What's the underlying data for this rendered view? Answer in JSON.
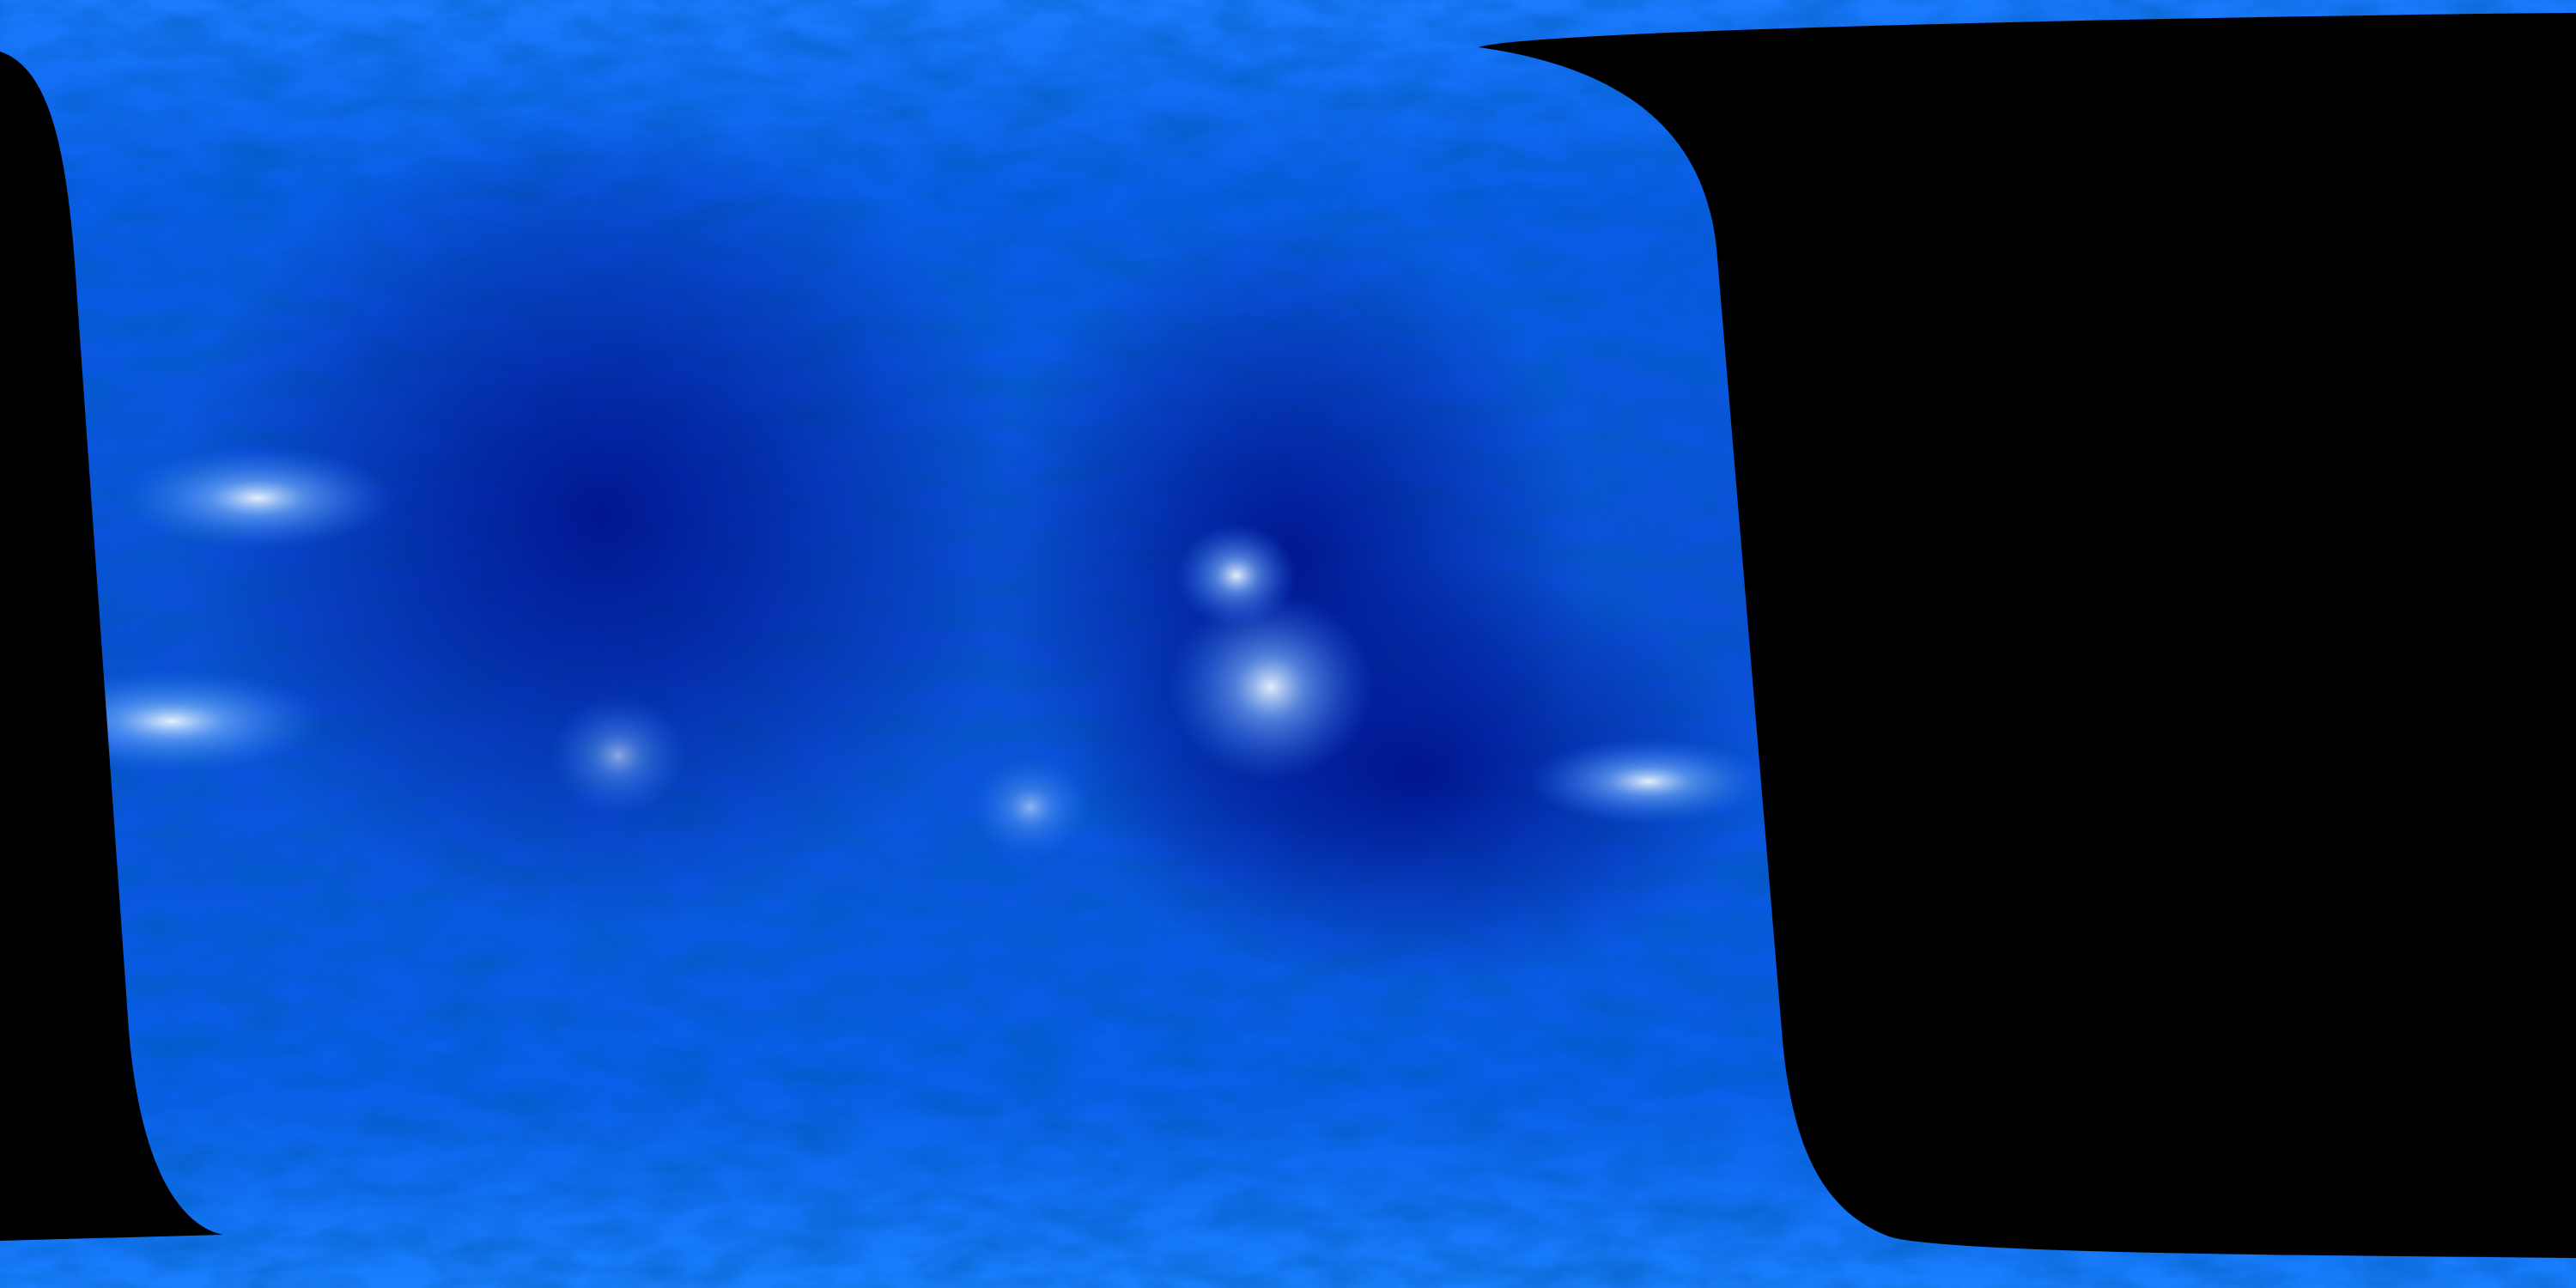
{
  "image": {
    "subject": "solar-surface-map",
    "colors": {
      "background": "#000000",
      "base_blue": "#0a5ee8",
      "dark_blue": "#00128a",
      "mid_blue": "#0070ff",
      "highlight": "#e8f4ff"
    }
  }
}
